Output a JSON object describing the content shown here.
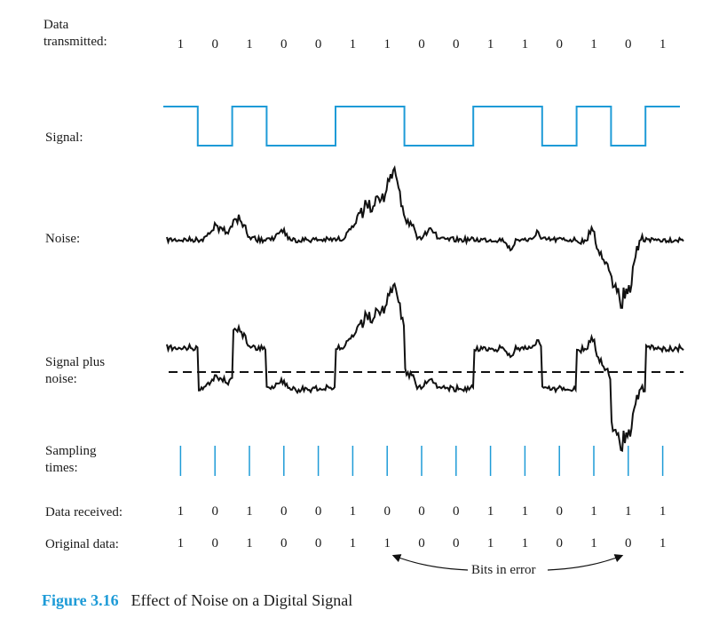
{
  "labels": {
    "data_transmitted": "Data\ntransmitted:",
    "signal": "Signal:",
    "noise": "Noise:",
    "signal_plus_noise": "Signal plus\nnoise:",
    "sampling_times": "Sampling\ntimes:",
    "data_received": "Data received:",
    "original_data": "Original data:"
  },
  "bits": {
    "transmitted": [
      "1",
      "0",
      "1",
      "0",
      "0",
      "1",
      "1",
      "0",
      "0",
      "1",
      "1",
      "0",
      "1",
      "0",
      "1"
    ],
    "received": [
      "1",
      "0",
      "1",
      "0",
      "0",
      "1",
      "0",
      "0",
      "0",
      "1",
      "1",
      "0",
      "1",
      "1",
      "1"
    ],
    "original": [
      "1",
      "0",
      "1",
      "0",
      "0",
      "1",
      "1",
      "0",
      "0",
      "1",
      "1",
      "0",
      "1",
      "0",
      "1"
    ]
  },
  "bits_in_error_label": "Bits in error",
  "error_bit_indices": [
    6,
    13
  ],
  "caption": {
    "figure_number": "Figure 3.16",
    "title": "Effect of Noise on a Digital Signal"
  },
  "colors": {
    "signal": "#1e9bd7",
    "noise": "#111111",
    "figure_number": "#1e9bd7"
  }
}
